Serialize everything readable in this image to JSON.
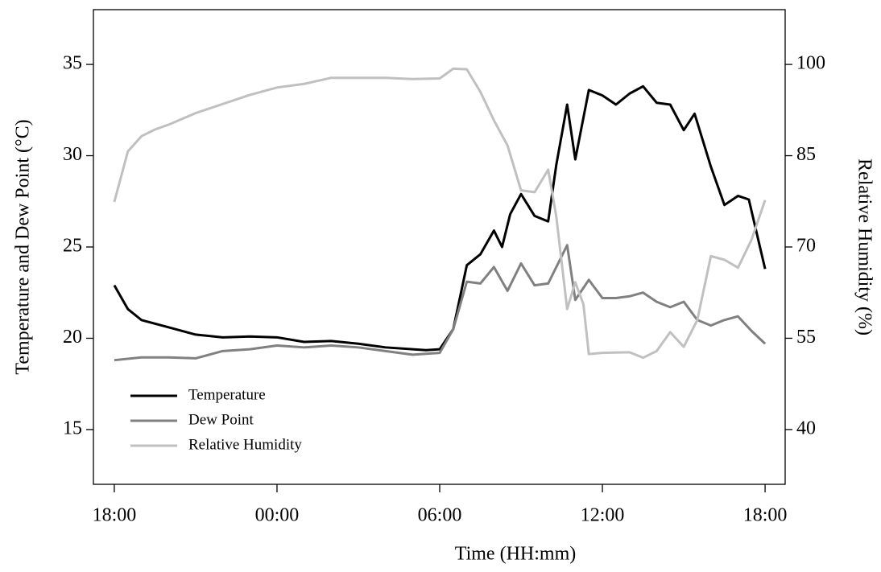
{
  "chart_data": {
    "type": "line",
    "xlabel": "Time (HH:mm)",
    "ylabel": "Temperature and Dew Point (°C)",
    "y2label": "Relative Humidity (%)",
    "xlim": [
      -0.77,
      24.74
    ],
    "xticks": [
      {
        "value": 0,
        "label": "18:00"
      },
      {
        "value": 6,
        "label": "00:00"
      },
      {
        "value": 12,
        "label": "06:00"
      },
      {
        "value": 18,
        "label": "12:00"
      },
      {
        "value": 24,
        "label": "18:00"
      }
    ],
    "ylim": [
      12,
      38
    ],
    "yticks": [
      15,
      20,
      25,
      30,
      35
    ],
    "y2lim": [
      31,
      109
    ],
    "y2ticks": [
      40,
      55,
      70,
      85,
      100
    ],
    "legend": "lower left",
    "series": [
      {
        "name": "Temperature",
        "color": "#000000",
        "x": [
          0,
          0.5,
          1,
          1.5,
          2,
          3,
          4,
          5,
          6,
          7,
          8,
          9,
          10,
          11,
          11.5,
          12,
          12.5,
          13,
          13.5,
          14,
          14.3,
          14.6,
          15,
          15.5,
          16,
          16.3,
          16.7,
          17,
          17.5,
          18,
          18.5,
          19,
          19.5,
          20,
          20.5,
          21,
          21.4,
          22,
          22.5,
          23,
          23.4,
          24
        ],
        "values": [
          22.9,
          21.6,
          21.0,
          20.8,
          20.6,
          20.2,
          20.05,
          20.1,
          20.05,
          19.8,
          19.85,
          19.7,
          19.5,
          19.4,
          19.35,
          19.4,
          20.5,
          24.0,
          24.6,
          25.9,
          25.0,
          26.8,
          27.9,
          26.7,
          26.4,
          29.5,
          32.8,
          29.8,
          33.6,
          33.3,
          32.8,
          33.4,
          33.8,
          32.9,
          32.8,
          31.4,
          32.3,
          29.4,
          27.3,
          27.8,
          27.6,
          23.8
        ]
      },
      {
        "name": "Dew Point",
        "color": "#808080",
        "x": [
          0,
          1,
          2,
          3,
          4,
          5,
          6,
          7,
          8,
          9,
          10,
          11,
          12,
          12.5,
          13,
          13.5,
          14,
          14.5,
          15,
          15.5,
          16,
          16.7,
          17,
          17.5,
          18,
          18.5,
          19,
          19.5,
          20,
          20.5,
          21,
          21.5,
          22,
          22.5,
          23,
          23.5,
          24
        ],
        "values": [
          18.8,
          18.95,
          18.95,
          18.9,
          19.3,
          19.4,
          19.6,
          19.5,
          19.6,
          19.5,
          19.3,
          19.1,
          19.2,
          20.5,
          23.1,
          23.0,
          23.9,
          22.6,
          24.1,
          22.9,
          23.0,
          25.1,
          22.1,
          23.2,
          22.2,
          22.2,
          22.3,
          22.5,
          22.0,
          21.7,
          22.0,
          21.0,
          20.7,
          21.0,
          21.2,
          20.4,
          19.7
        ]
      },
      {
        "name": "Relative Humidity",
        "color": "#c0c0c0",
        "axis": "y2",
        "x": [
          0,
          0.5,
          1,
          1.5,
          2,
          3,
          4,
          5,
          6,
          7,
          8,
          9,
          10,
          11,
          12,
          12.5,
          13,
          13.5,
          14,
          14.5,
          15,
          15.5,
          16,
          16.3,
          16.7,
          17,
          17.3,
          17.5,
          18,
          19,
          19.5,
          20,
          20.5,
          21,
          21.5,
          22,
          22.5,
          23,
          23.5,
          24
        ],
        "values": [
          77.4,
          85.7,
          88.2,
          89.3,
          90.1,
          92.0,
          93.5,
          95.0,
          96.2,
          96.8,
          97.8,
          97.8,
          97.8,
          97.6,
          97.7,
          99.3,
          99.2,
          95.5,
          90.8,
          86.7,
          79.3,
          79.0,
          82.7,
          75.0,
          59.8,
          64.2,
          60.6,
          52.4,
          52.6,
          52.7,
          51.8,
          52.9,
          56.0,
          53.6,
          58.0,
          68.5,
          67.9,
          66.6,
          71.2,
          77.7
        ]
      }
    ]
  }
}
